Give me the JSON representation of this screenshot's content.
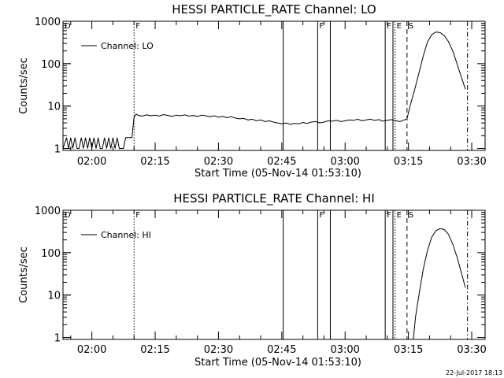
{
  "chart_data": [
    {
      "type": "line",
      "title": "HESSI PARTICLE_RATE Channel: LO",
      "xlabel": "Start Time (05-Nov-14 01:53:10)",
      "ylabel": "Counts/sec",
      "yscale": "log",
      "ylim": [
        0.9,
        1000
      ],
      "xlim": [
        "01:53:10",
        "03:33:10"
      ],
      "yticks": [
        {
          "v": 1,
          "label": "1"
        },
        {
          "v": 10,
          "label": "10"
        },
        {
          "v": 100,
          "label": "100"
        },
        {
          "v": 1000,
          "label": "1000"
        }
      ],
      "xticks": [
        "02:00",
        "02:15",
        "02:30",
        "02:45",
        "03:00",
        "03:15",
        "03:30"
      ],
      "legend": {
        "position": "top-left",
        "entries": [
          "Channel: LO"
        ]
      },
      "events": [
        {
          "label": "D",
          "time": "01:53:10",
          "style": "solid"
        },
        {
          "label": "F",
          "time": "02:10:00",
          "style": "dotted"
        },
        {
          "label": "",
          "time": "02:45:20",
          "style": "solid"
        },
        {
          "label": "F",
          "time": "02:53:30",
          "style": "solid"
        },
        {
          "label": "",
          "time": "02:56:30",
          "style": "solid"
        },
        {
          "label": "F",
          "time": "03:09:30",
          "style": "solid"
        },
        {
          "label": "",
          "time": "03:11:20",
          "style": "solid"
        },
        {
          "label": "E",
          "time": "03:11:50",
          "style": "dotted"
        },
        {
          "label": "S",
          "time": "03:14:40",
          "style": "dashed"
        },
        {
          "label": "",
          "time": "03:29:00",
          "style": "dashdot"
        }
      ],
      "series": [
        {
          "segments": [
            {
              "x": [
                "01:53:10",
                "01:54:00",
                "01:54:30",
                "01:55:00",
                "01:55:30",
                "01:56:00",
                "01:56:30",
                "01:57:00",
                "01:57:30",
                "01:58:00",
                "01:58:30",
                "01:59:00",
                "01:59:30",
                "02:00:00",
                "02:00:30",
                "02:01:00",
                "02:01:30",
                "02:02:00",
                "02:02:30",
                "02:03:00",
                "02:03:30",
                "02:04:00",
                "02:04:30",
                "02:05:00",
                "02:05:30",
                "02:06:00",
                "02:06:30",
                "02:07:00",
                "02:07:30",
                "02:08:00",
                "02:08:30",
                "02:09:00",
                "02:09:30",
                "02:10:00",
                "02:10:30",
                "02:11:00",
                "02:12:00",
                "02:13:00",
                "02:14:00",
                "02:15:00",
                "02:16:00",
                "02:17:00",
                "02:18:00",
                "02:19:00",
                "02:20:00",
                "02:21:00",
                "02:22:00",
                "02:23:00",
                "02:24:00",
                "02:25:00",
                "02:26:00",
                "02:27:00",
                "02:28:00",
                "02:29:00",
                "02:30:00",
                "02:31:00",
                "02:32:00",
                "02:33:00",
                "02:34:00",
                "02:35:00",
                "02:36:00",
                "02:37:00",
                "02:38:00",
                "02:39:00",
                "02:40:00",
                "02:41:00",
                "02:42:00",
                "02:43:00",
                "02:44:00",
                "02:45:00",
                "02:46:00",
                "02:47:00",
                "02:48:00",
                "02:49:00",
                "02:50:00",
                "02:51:00",
                "02:52:00",
                "02:53:00",
                "02:54:00",
                "02:55:00",
                "02:56:00",
                "02:57:00",
                "02:58:00",
                "02:59:00",
                "03:00:00",
                "03:01:00",
                "03:02:00",
                "03:03:00",
                "03:04:00",
                "03:05:00",
                "03:06:00",
                "03:07:00",
                "03:08:00",
                "03:09:00",
                "03:10:00",
                "03:11:00",
                "03:12:00",
                "03:13:00",
                "03:14:00",
                "03:14:30"
              ],
              "y": [
                1,
                1.8,
                1,
                1.8,
                1,
                1.8,
                1,
                1,
                1.8,
                1,
                1.8,
                1,
                1.8,
                1,
                1.8,
                1,
                1.8,
                1,
                1,
                1.8,
                1,
                1.8,
                1,
                1.8,
                1,
                1.8,
                1,
                1,
                1,
                1.8,
                1.8,
                1.8,
                1.8,
                5.5,
                6.5,
                6.0,
                5.8,
                6.2,
                5.9,
                6.1,
                5.8,
                6.3,
                6.0,
                5.7,
                6.1,
                5.9,
                6.2,
                5.8,
                6.0,
                5.7,
                6.1,
                5.9,
                5.6,
                5.9,
                5.5,
                5.7,
                5.3,
                5.6,
                5.2,
                5.0,
                5.1,
                4.7,
                4.9,
                4.5,
                4.7,
                4.3,
                4.5,
                4.2,
                4.0,
                3.8,
                4.0,
                3.7,
                3.9,
                3.8,
                4.1,
                3.9,
                4.2,
                4.3,
                4.0,
                4.2,
                4.5,
                4.4,
                4.6,
                4.3,
                4.5,
                4.7,
                4.6,
                4.9,
                4.5,
                4.7,
                4.9,
                4.6,
                4.8,
                4.4,
                4.6,
                4.8,
                4.5,
                4.3,
                4.7,
                4.9
              ]
            },
            {
              "x": [
                "03:14:40",
                "03:15:30",
                "03:16:30",
                "03:17:30",
                "03:18:30",
                "03:19:30",
                "03:20:30",
                "03:21:30",
                "03:22:30",
                "03:23:30",
                "03:24:30",
                "03:25:30",
                "03:26:30",
                "03:27:30",
                "03:28:30"
              ],
              "y": [
                5,
                11,
                25,
                60,
                150,
                320,
                480,
                560,
                540,
                460,
                330,
                200,
                100,
                50,
                25
              ]
            }
          ]
        }
      ]
    },
    {
      "type": "line",
      "title": "HESSI PARTICLE_RATE Channel: HI",
      "xlabel": "Start Time (05-Nov-14 01:53:10)",
      "ylabel": "Counts/sec",
      "yscale": "log",
      "ylim": [
        0.9,
        1000
      ],
      "xlim": [
        "01:53:10",
        "03:33:10"
      ],
      "yticks": [
        {
          "v": 1,
          "label": "1"
        },
        {
          "v": 10,
          "label": "10"
        },
        {
          "v": 100,
          "label": "100"
        },
        {
          "v": 1000,
          "label": "1000"
        }
      ],
      "xticks": [
        "02:00",
        "02:15",
        "02:30",
        "02:45",
        "03:00",
        "03:15",
        "03:30"
      ],
      "legend": {
        "position": "top-left",
        "entries": [
          "Channel: HI"
        ]
      },
      "events": [
        {
          "label": "D",
          "time": "01:53:10",
          "style": "solid"
        },
        {
          "label": "F",
          "time": "02:10:00",
          "style": "dotted"
        },
        {
          "label": "",
          "time": "02:45:20",
          "style": "solid"
        },
        {
          "label": "F",
          "time": "02:53:30",
          "style": "solid"
        },
        {
          "label": "",
          "time": "02:56:30",
          "style": "solid"
        },
        {
          "label": "F",
          "time": "03:09:30",
          "style": "solid"
        },
        {
          "label": "",
          "time": "03:11:20",
          "style": "solid"
        },
        {
          "label": "E",
          "time": "03:11:50",
          "style": "dotted"
        },
        {
          "label": "S",
          "time": "03:14:40",
          "style": "dashed"
        },
        {
          "label": "",
          "time": "03:29:00",
          "style": "dashdot"
        }
      ],
      "series": [
        {
          "segments": [
            {
              "x": [
                "03:16:10",
                "03:16:40",
                "03:17:30",
                "03:18:30",
                "03:19:30",
                "03:20:30",
                "03:21:30",
                "03:22:30",
                "03:23:30",
                "03:24:30",
                "03:25:30",
                "03:26:30",
                "03:27:30",
                "03:28:30"
              ],
              "y": [
                0.9,
                3,
                10,
                40,
                110,
                230,
                330,
                370,
                350,
                270,
                160,
                80,
                35,
                15
              ]
            }
          ]
        }
      ]
    }
  ],
  "footer": {
    "timestamp": "22-Jul-2017 18:13"
  }
}
